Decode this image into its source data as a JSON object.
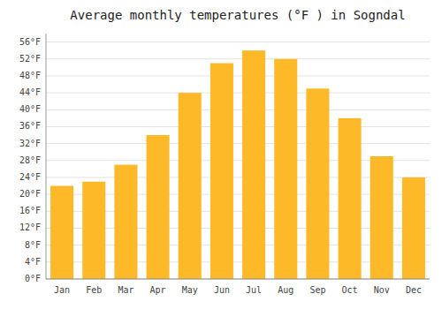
{
  "chart_data": {
    "type": "bar",
    "title": "Average monthly temperatures (°F ) in Sogndal",
    "categories": [
      "Jan",
      "Feb",
      "Mar",
      "Apr",
      "May",
      "Jun",
      "Jul",
      "Aug",
      "Sep",
      "Oct",
      "Nov",
      "Dec"
    ],
    "values": [
      22,
      23,
      27,
      34,
      44,
      51,
      54,
      52,
      45,
      38,
      29,
      24
    ],
    "color": "#FDB927",
    "ylim": [
      0,
      58
    ],
    "yticks": [
      {
        "value": 0,
        "label": "0°F"
      },
      {
        "value": 4,
        "label": "4°F"
      },
      {
        "value": 8,
        "label": "8°F"
      },
      {
        "value": 12,
        "label": "12°F"
      },
      {
        "value": 16,
        "label": "16°F"
      },
      {
        "value": 20,
        "label": "20°F"
      },
      {
        "value": 24,
        "label": "24°F"
      },
      {
        "value": 28,
        "label": "28°F"
      },
      {
        "value": 32,
        "label": "32°F"
      },
      {
        "value": 36,
        "label": "36°F"
      },
      {
        "value": 40,
        "label": "40°F"
      },
      {
        "value": 44,
        "label": "44°F"
      },
      {
        "value": 48,
        "label": "48°F"
      },
      {
        "value": 52,
        "label": "52°F"
      },
      {
        "value": 56,
        "label": "56°F"
      }
    ],
    "grid": true
  }
}
